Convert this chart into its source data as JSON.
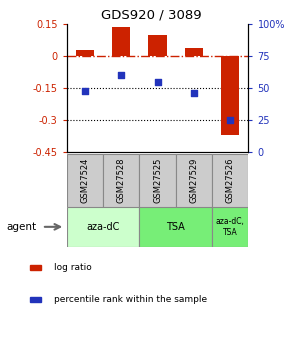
{
  "title": "GDS920 / 3089",
  "samples": [
    "GSM27524",
    "GSM27528",
    "GSM27525",
    "GSM27529",
    "GSM27526"
  ],
  "log_ratio": [
    0.03,
    0.135,
    0.1,
    0.04,
    -0.37
  ],
  "percentile_rank": [
    48,
    60,
    55,
    46,
    25
  ],
  "ylim_left": [
    -0.45,
    0.15
  ],
  "ylim_right": [
    0,
    100
  ],
  "yticks_left": [
    -0.45,
    -0.3,
    -0.15,
    0.0,
    0.15
  ],
  "ytick_labels_left": [
    "-0.45",
    "-0.3",
    "-0.15",
    "0",
    "0.15"
  ],
  "yticks_right": [
    0,
    25,
    50,
    75,
    100
  ],
  "ytick_labels_right": [
    "0",
    "25",
    "50",
    "75",
    "100%"
  ],
  "hlines": [
    -0.15,
    -0.3
  ],
  "bar_color": "#cc2200",
  "dot_color": "#2233bb",
  "dashed_line_color": "#cc2200",
  "agent_groups": [
    {
      "label": "aza-dC",
      "span": [
        0,
        2
      ],
      "color": "#ccffcc"
    },
    {
      "label": "TSA",
      "span": [
        2,
        4
      ],
      "color": "#77ee77"
    },
    {
      "label": "aza-dC,\nTSA",
      "span": [
        4,
        5
      ],
      "color": "#77ee77"
    }
  ],
  "agent_label": "agent",
  "legend_items": [
    {
      "color": "#cc2200",
      "label": "log ratio"
    },
    {
      "color": "#2233bb",
      "label": "percentile rank within the sample"
    }
  ],
  "left_tick_color": "#cc2200",
  "right_tick_color": "#2233bb",
  "background_color": "#ffffff",
  "sample_box_color": "#cccccc",
  "bar_width": 0.5,
  "dot_size": 22
}
